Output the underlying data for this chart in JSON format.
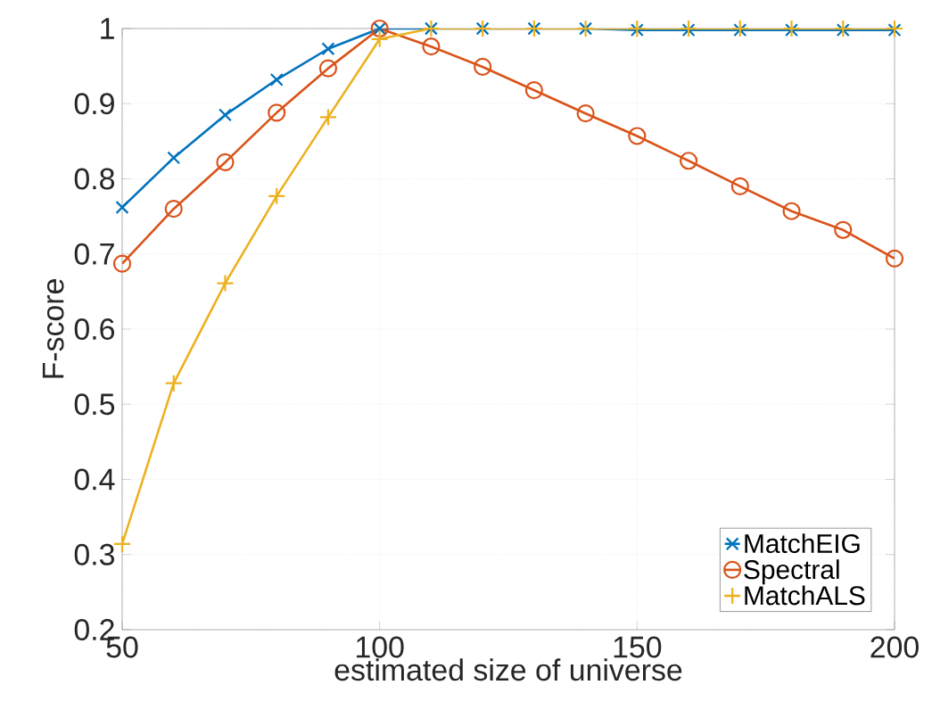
{
  "chart_data": {
    "type": "line",
    "xlabel": "estimated size of universe",
    "ylabel": "F-score",
    "x": [
      50,
      60,
      70,
      80,
      90,
      100,
      110,
      120,
      130,
      140,
      150,
      160,
      170,
      180,
      190,
      200
    ],
    "series": [
      {
        "name": "MatchEIG",
        "color": "#0072bd",
        "marker": "cross",
        "values": [
          0.762,
          0.828,
          0.885,
          0.932,
          0.973,
          1,
          1,
          1,
          1,
          1,
          0.998,
          0.998,
          0.998,
          0.998,
          0.998,
          0.998
        ]
      },
      {
        "name": "Spectral",
        "color": "#d95319",
        "marker": "circle",
        "values": [
          0.687,
          0.76,
          0.822,
          0.888,
          0.947,
          1,
          0.976,
          0.949,
          0.918,
          0.887,
          0.857,
          0.824,
          0.79,
          0.757,
          0.732,
          0.694
        ]
      },
      {
        "name": "MatchALS",
        "color": "#edb120",
        "marker": "plus",
        "values": [
          0.314,
          0.528,
          0.661,
          0.777,
          0.882,
          0.986,
          1,
          1,
          1,
          1,
          1,
          1,
          1,
          1,
          1,
          1
        ]
      }
    ],
    "xlim": [
      50,
      200
    ],
    "xticks": [
      50,
      100,
      150,
      200
    ],
    "ylim": [
      0.2,
      1
    ],
    "yticks": [
      0.2,
      0.3,
      0.4,
      0.5,
      0.6,
      0.7,
      0.8,
      0.9,
      1
    ],
    "grid": true,
    "legend": "bottom right",
    "line_style": "solid"
  }
}
